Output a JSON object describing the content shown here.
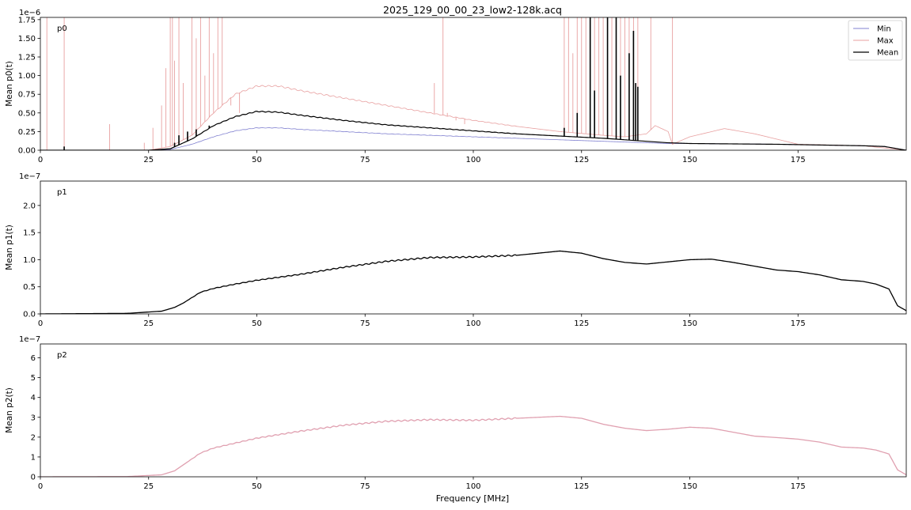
{
  "figure": {
    "title": "2025_129_00_00_23_low2-128k.acq",
    "xlabel": "Frequency [MHz]"
  },
  "legend": {
    "placement": "top-right",
    "entries": [
      {
        "label": "Min",
        "color": "#8080d0"
      },
      {
        "label": "Max",
        "color": "#e8a0a0"
      },
      {
        "label": "Mean",
        "color": "#000000"
      }
    ]
  },
  "chart_data": [
    {
      "type": "line",
      "panel_label": "p0",
      "ylabel": "Mean p0(t)",
      "offset_text": "1e−6",
      "xlim": [
        0,
        200
      ],
      "ylim": [
        0,
        1.78
      ],
      "x_ticks": [
        0,
        25,
        50,
        75,
        100,
        125,
        150,
        175
      ],
      "y_ticks": [
        "0.00",
        "0.25",
        "0.50",
        "0.75",
        "1.00",
        "1.25",
        "1.50",
        "1.75"
      ],
      "y_tick_values": [
        0,
        0.25,
        0.5,
        0.75,
        1.0,
        1.25,
        1.5,
        1.75
      ],
      "series": [
        {
          "name": "Min",
          "color": "#8080d0",
          "x": [
            0,
            25,
            30,
            35,
            40,
            45,
            50,
            55,
            60,
            70,
            80,
            90,
            100,
            110,
            120,
            130,
            135,
            140,
            145,
            150,
            160,
            170,
            180,
            190,
            195,
            200
          ],
          "y": [
            0,
            0,
            0.01,
            0.08,
            0.18,
            0.26,
            0.3,
            0.3,
            0.28,
            0.25,
            0.22,
            0.2,
            0.18,
            0.16,
            0.14,
            0.12,
            0.11,
            0.1,
            0.09,
            0.09,
            0.085,
            0.08,
            0.07,
            0.06,
            0.05,
            0.0
          ]
        },
        {
          "name": "Max",
          "color": "#e8a0a0",
          "x": [
            0,
            25,
            30,
            35,
            40,
            45,
            50,
            55,
            60,
            70,
            80,
            90,
            100,
            110,
            120,
            130,
            135,
            140,
            142,
            145,
            146,
            150,
            158,
            165,
            175,
            190,
            200
          ],
          "y": [
            0,
            0,
            0.05,
            0.2,
            0.5,
            0.75,
            0.86,
            0.86,
            0.8,
            0.7,
            0.6,
            0.5,
            0.4,
            0.32,
            0.25,
            0.2,
            0.18,
            0.22,
            0.33,
            0.25,
            0.08,
            0.18,
            0.29,
            0.22,
            0.08,
            0.06,
            0.0
          ]
        },
        {
          "name": "Mean",
          "color": "#000000",
          "x": [
            0,
            25,
            30,
            35,
            40,
            45,
            50,
            55,
            60,
            70,
            80,
            90,
            100,
            110,
            120,
            130,
            135,
            140,
            145,
            150,
            160,
            170,
            180,
            190,
            195,
            200
          ],
          "y": [
            0,
            0,
            0.02,
            0.15,
            0.33,
            0.45,
            0.52,
            0.51,
            0.47,
            0.4,
            0.34,
            0.3,
            0.26,
            0.22,
            0.19,
            0.16,
            0.14,
            0.12,
            0.1,
            0.09,
            0.085,
            0.08,
            0.07,
            0.06,
            0.05,
            0.0
          ]
        }
      ],
      "spikes": {
        "Max": [
          [
            1.5,
            1.78
          ],
          [
            5.5,
            1.78
          ],
          [
            16,
            0.35
          ],
          [
            24,
            0.1
          ],
          [
            26,
            0.3
          ],
          [
            28,
            0.6
          ],
          [
            29,
            1.1
          ],
          [
            30,
            1.78
          ],
          [
            30.5,
            1.78
          ],
          [
            31,
            1.2
          ],
          [
            32,
            1.78
          ],
          [
            33,
            0.9
          ],
          [
            35,
            1.78
          ],
          [
            36,
            1.5
          ],
          [
            37,
            1.78
          ],
          [
            38,
            1.0
          ],
          [
            39,
            1.78
          ],
          [
            40,
            1.3
          ],
          [
            41,
            1.78
          ],
          [
            42,
            1.78
          ],
          [
            44,
            0.6
          ],
          [
            46,
            0.5
          ],
          [
            91,
            0.9
          ],
          [
            93,
            1.78
          ],
          [
            94,
            0.5
          ],
          [
            96,
            0.4
          ],
          [
            98,
            0.35
          ],
          [
            121,
            1.78
          ],
          [
            122,
            1.78
          ],
          [
            123,
            1.3
          ],
          [
            124,
            1.78
          ],
          [
            125,
            1.78
          ],
          [
            126,
            1.78
          ],
          [
            127,
            1.78
          ],
          [
            128,
            1.78
          ],
          [
            129,
            1.78
          ],
          [
            130,
            1.78
          ],
          [
            131,
            1.78
          ],
          [
            132,
            1.78
          ],
          [
            133,
            1.78
          ],
          [
            134,
            1.78
          ],
          [
            135,
            1.78
          ],
          [
            136,
            1.78
          ],
          [
            137,
            1.78
          ],
          [
            138,
            1.78
          ],
          [
            141,
            1.78
          ],
          [
            146,
            1.78
          ]
        ],
        "Mean": [
          [
            5.5,
            0.05
          ],
          [
            31,
            0.1
          ],
          [
            32,
            0.2
          ],
          [
            34,
            0.25
          ],
          [
            36,
            0.28
          ],
          [
            39,
            0.33
          ],
          [
            121,
            0.3
          ],
          [
            124,
            0.5
          ],
          [
            127,
            1.78
          ],
          [
            128,
            0.8
          ],
          [
            131,
            1.78
          ],
          [
            133,
            1.78
          ],
          [
            134,
            1.0
          ],
          [
            136,
            1.3
          ],
          [
            137,
            1.6
          ],
          [
            137.5,
            0.9
          ],
          [
            138,
            0.85
          ]
        ]
      }
    },
    {
      "type": "line",
      "panel_label": "p1",
      "ylabel": "Mean p1(t)",
      "offset_text": "1e−7",
      "xlim": [
        0,
        200
      ],
      "ylim": [
        0,
        2.45
      ],
      "x_ticks": [
        0,
        25,
        50,
        75,
        100,
        125,
        150,
        175
      ],
      "y_ticks": [
        "0.0",
        "0.5",
        "1.0",
        "1.5",
        "2.0"
      ],
      "y_tick_values": [
        0,
        0.5,
        1.0,
        1.5,
        2.0
      ],
      "series": [
        {
          "name": "Mean",
          "color": "#000000",
          "x": [
            0,
            20,
            28,
            31,
            33,
            35,
            37,
            40,
            45,
            50,
            60,
            70,
            80,
            90,
            100,
            110,
            115,
            120,
            125,
            130,
            135,
            140,
            145,
            150,
            155,
            160,
            165,
            170,
            175,
            180,
            185,
            190,
            193,
            196,
            198,
            200
          ],
          "y": [
            0,
            0.01,
            0.05,
            0.12,
            0.2,
            0.3,
            0.4,
            0.47,
            0.55,
            0.62,
            0.73,
            0.86,
            0.97,
            1.04,
            1.05,
            1.08,
            1.12,
            1.16,
            1.12,
            1.02,
            0.95,
            0.92,
            0.96,
            1.0,
            1.01,
            0.95,
            0.88,
            0.81,
            0.78,
            0.72,
            0.63,
            0.6,
            0.55,
            0.46,
            0.15,
            0.06
          ]
        }
      ],
      "spikes": {}
    },
    {
      "type": "line",
      "panel_label": "p2",
      "ylabel": "Mean p2(t)",
      "offset_text": "1e−7",
      "xlim": [
        0,
        200
      ],
      "ylim": [
        0,
        6.7
      ],
      "x_ticks": [
        0,
        25,
        50,
        75,
        100,
        125,
        150,
        175
      ],
      "y_ticks": [
        "0",
        "1",
        "2",
        "3",
        "4",
        "5",
        "6"
      ],
      "y_tick_values": [
        0,
        1,
        2,
        3,
        4,
        5,
        6
      ],
      "series": [
        {
          "name": "Mean",
          "color": "#e0a0b0",
          "x": [
            0,
            20,
            28,
            31,
            33,
            35,
            37,
            40,
            45,
            50,
            60,
            70,
            80,
            90,
            100,
            110,
            115,
            120,
            125,
            130,
            135,
            140,
            145,
            150,
            155,
            160,
            165,
            170,
            175,
            180,
            185,
            190,
            193,
            196,
            198,
            200
          ],
          "y": [
            0,
            0.01,
            0.1,
            0.3,
            0.6,
            0.9,
            1.2,
            1.45,
            1.7,
            1.95,
            2.3,
            2.6,
            2.8,
            2.88,
            2.85,
            2.95,
            3.0,
            3.05,
            2.95,
            2.65,
            2.45,
            2.33,
            2.4,
            2.5,
            2.45,
            2.25,
            2.05,
            1.98,
            1.9,
            1.75,
            1.5,
            1.45,
            1.35,
            1.15,
            0.35,
            0.1
          ]
        }
      ],
      "spikes": {}
    }
  ]
}
